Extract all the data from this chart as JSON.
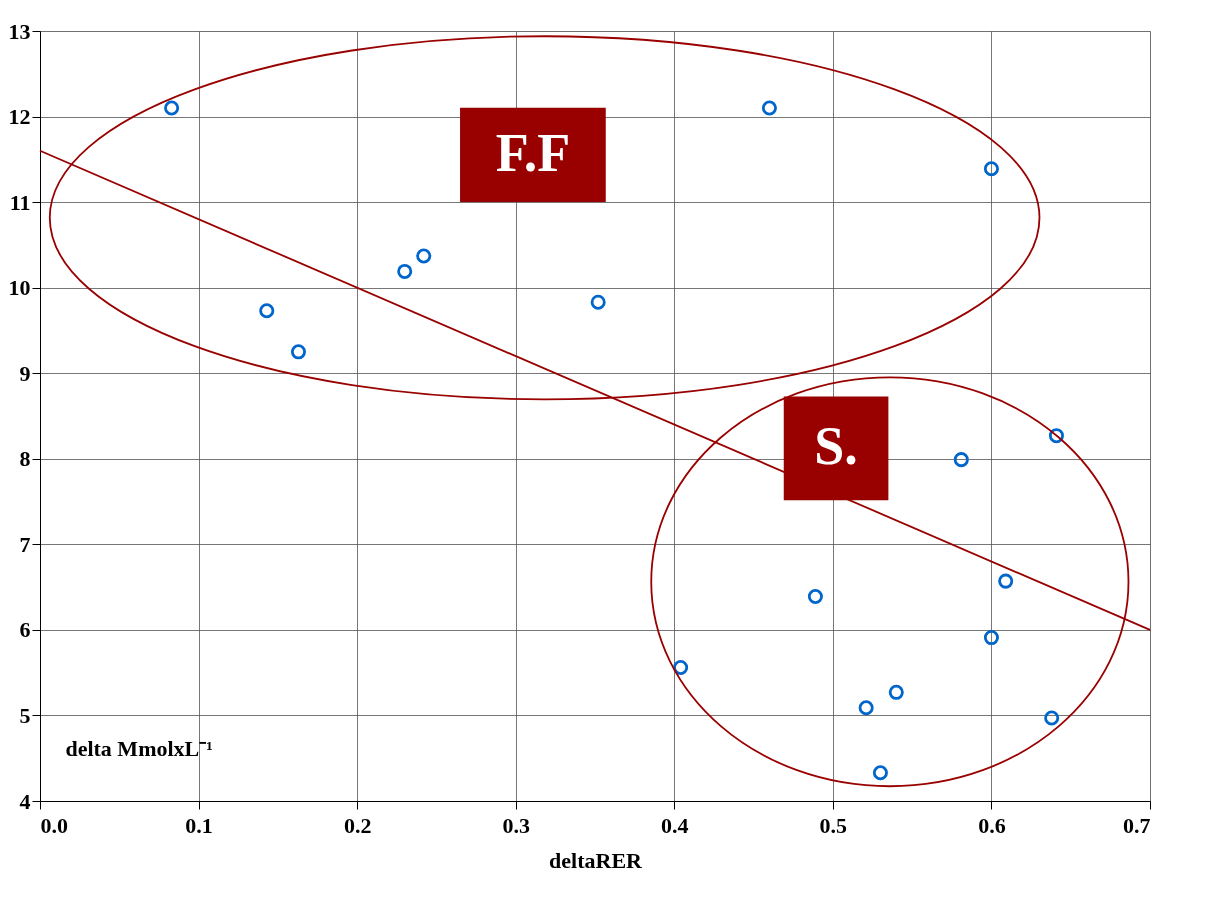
{
  "chart_data": {
    "type": "scatter",
    "xlabel": "deltaRER",
    "ylabel": "delta MmolxL⁻¹",
    "series": [
      {
        "color": "#0066cc",
        "marker": "circle",
        "x": [
          0.083,
          0.143,
          0.163,
          0.23,
          0.242,
          0.352,
          0.46,
          0.6,
          0.641,
          0.581,
          0.489,
          0.609,
          0.6,
          0.404,
          0.521,
          0.54,
          0.53,
          0.638
        ],
        "values": [
          12.1,
          9.73,
          9.25,
          10.19,
          10.37,
          9.83,
          12.1,
          11.39,
          8.27,
          7.99,
          6.39,
          6.57,
          5.91,
          5.56,
          5.09,
          5.27,
          4.33,
          4.97
        ]
      },
      {
        "type": "line",
        "color": "#990000",
        "x": [
          0.0,
          0.7
        ],
        "values": [
          11.6,
          6.0
        ]
      }
    ],
    "annotations": [
      "F.F",
      "S."
    ],
    "xlim": [
      0.0,
      0.7
    ],
    "xticks": [
      {
        "value": 0.0,
        "label": "0.0"
      },
      0.1,
      0.2,
      0.3,
      0.4,
      0.5,
      0.6,
      0.7
    ],
    "ylim": [
      4,
      13
    ],
    "yticks": [
      4,
      5,
      6,
      7,
      8,
      9,
      10,
      11,
      12,
      13
    ],
    "grid": true
  }
}
